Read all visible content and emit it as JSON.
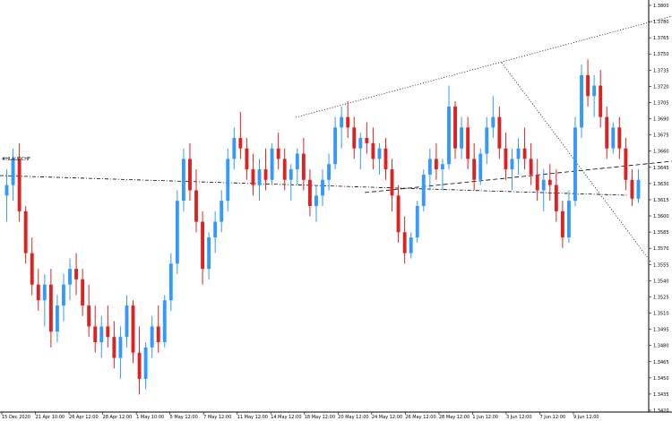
{
  "chart_data": {
    "type": "candlestick",
    "title": "",
    "xlabel": "",
    "ylabel": "",
    "ylim": [
      1.341,
      1.38
    ],
    "up_color": "#3399ff",
    "down_color": "#dd2222",
    "axis_color": "#000000",
    "trendline_color": "#000000",
    "x_ticks": [
      "15 Dec 2020",
      "21 Apr 10:00",
      "26 Apr 12:00",
      "28 Apr 12:00",
      "1 May 10:00",
      "5 May 12:00",
      "7 May 12:00",
      "11 May 12:00",
      "14 May 12:00",
      "18 May 12:00",
      "20 May 12:00",
      "24 May 12:00",
      "26 May 12:00",
      "28 May 12:00",
      "1 Jun 12:00",
      "3 Jun 12:00",
      "7 Jun 12:00",
      "9 Jun 12:00"
    ],
    "y_ticks": [
      "1.3800",
      "1.3780",
      "1.3765",
      "1.3750",
      "1.3735",
      "1.3720",
      "1.3705",
      "1.3690",
      "1.3675",
      "1.3660",
      "1.3645",
      "1.3630",
      "1.3615",
      "1.3600",
      "1.3585",
      "1.3570",
      "1.3555",
      "1.3540",
      "1.3525",
      "1.3510",
      "1.3495",
      "1.3480",
      "1.3465",
      "1.3450",
      "1.3435",
      "1.3420"
    ],
    "annotation": "#HLAUDCHF",
    "candles": [
      {
        "o": 1.3615,
        "h": 1.364,
        "l": 1.359,
        "c": 1.3625
      },
      {
        "o": 1.3625,
        "h": 1.366,
        "l": 1.361,
        "c": 1.365
      },
      {
        "o": 1.365,
        "h": 1.3665,
        "l": 1.359,
        "c": 1.36
      },
      {
        "o": 1.36,
        "h": 1.3605,
        "l": 1.355,
        "c": 1.356
      },
      {
        "o": 1.356,
        "h": 1.3575,
        "l": 1.352,
        "c": 1.353
      },
      {
        "o": 1.353,
        "h": 1.3545,
        "l": 1.3505,
        "c": 1.3515
      },
      {
        "o": 1.3515,
        "h": 1.354,
        "l": 1.349,
        "c": 1.353
      },
      {
        "o": 1.353,
        "h": 1.3545,
        "l": 1.347,
        "c": 1.3485
      },
      {
        "o": 1.3485,
        "h": 1.352,
        "l": 1.3475,
        "c": 1.351
      },
      {
        "o": 1.351,
        "h": 1.354,
        "l": 1.3495,
        "c": 1.353
      },
      {
        "o": 1.353,
        "h": 1.3555,
        "l": 1.3515,
        "c": 1.3545
      },
      {
        "o": 1.3545,
        "h": 1.356,
        "l": 1.352,
        "c": 1.3535
      },
      {
        "o": 1.3535,
        "h": 1.3545,
        "l": 1.35,
        "c": 1.351
      },
      {
        "o": 1.351,
        "h": 1.353,
        "l": 1.348,
        "c": 1.349
      },
      {
        "o": 1.349,
        "h": 1.351,
        "l": 1.3465,
        "c": 1.3475
      },
      {
        "o": 1.3475,
        "h": 1.35,
        "l": 1.346,
        "c": 1.349
      },
      {
        "o": 1.349,
        "h": 1.351,
        "l": 1.347,
        "c": 1.348
      },
      {
        "o": 1.348,
        "h": 1.3495,
        "l": 1.345,
        "c": 1.346
      },
      {
        "o": 1.346,
        "h": 1.349,
        "l": 1.344,
        "c": 1.348
      },
      {
        "o": 1.348,
        "h": 1.352,
        "l": 1.347,
        "c": 1.351
      },
      {
        "o": 1.351,
        "h": 1.3515,
        "l": 1.3455,
        "c": 1.3465
      },
      {
        "o": 1.3465,
        "h": 1.349,
        "l": 1.3425,
        "c": 1.344
      },
      {
        "o": 1.344,
        "h": 1.3475,
        "l": 1.343,
        "c": 1.347
      },
      {
        "o": 1.347,
        "h": 1.35,
        "l": 1.346,
        "c": 1.349
      },
      {
        "o": 1.349,
        "h": 1.351,
        "l": 1.3465,
        "c": 1.3475
      },
      {
        "o": 1.3475,
        "h": 1.352,
        "l": 1.347,
        "c": 1.3515
      },
      {
        "o": 1.3515,
        "h": 1.356,
        "l": 1.3505,
        "c": 1.355
      },
      {
        "o": 1.355,
        "h": 1.362,
        "l": 1.354,
        "c": 1.361
      },
      {
        "o": 1.361,
        "h": 1.366,
        "l": 1.36,
        "c": 1.365
      },
      {
        "o": 1.365,
        "h": 1.3665,
        "l": 1.361,
        "c": 1.362
      },
      {
        "o": 1.362,
        "h": 1.364,
        "l": 1.358,
        "c": 1.359
      },
      {
        "o": 1.359,
        "h": 1.36,
        "l": 1.353,
        "c": 1.3545
      },
      {
        "o": 1.3545,
        "h": 1.358,
        "l": 1.3535,
        "c": 1.3575
      },
      {
        "o": 1.3575,
        "h": 1.36,
        "l": 1.356,
        "c": 1.359
      },
      {
        "o": 1.359,
        "h": 1.362,
        "l": 1.358,
        "c": 1.361
      },
      {
        "o": 1.361,
        "h": 1.366,
        "l": 1.36,
        "c": 1.365
      },
      {
        "o": 1.365,
        "h": 1.368,
        "l": 1.364,
        "c": 1.367
      },
      {
        "o": 1.367,
        "h": 1.3695,
        "l": 1.365,
        "c": 1.366
      },
      {
        "o": 1.366,
        "h": 1.367,
        "l": 1.363,
        "c": 1.364
      },
      {
        "o": 1.364,
        "h": 1.3655,
        "l": 1.3615,
        "c": 1.3625
      },
      {
        "o": 1.3625,
        "h": 1.365,
        "l": 1.361,
        "c": 1.364
      },
      {
        "o": 1.364,
        "h": 1.366,
        "l": 1.362,
        "c": 1.363
      },
      {
        "o": 1.363,
        "h": 1.3665,
        "l": 1.3625,
        "c": 1.366
      },
      {
        "o": 1.366,
        "h": 1.3675,
        "l": 1.364,
        "c": 1.365
      },
      {
        "o": 1.365,
        "h": 1.366,
        "l": 1.362,
        "c": 1.363
      },
      {
        "o": 1.363,
        "h": 1.3645,
        "l": 1.361,
        "c": 1.364
      },
      {
        "o": 1.364,
        "h": 1.366,
        "l": 1.3625,
        "c": 1.3655
      },
      {
        "o": 1.3655,
        "h": 1.367,
        "l": 1.362,
        "c": 1.363
      },
      {
        "o": 1.363,
        "h": 1.364,
        "l": 1.3595,
        "c": 1.3605
      },
      {
        "o": 1.3605,
        "h": 1.3625,
        "l": 1.359,
        "c": 1.3615
      },
      {
        "o": 1.3615,
        "h": 1.364,
        "l": 1.3605,
        "c": 1.363
      },
      {
        "o": 1.363,
        "h": 1.3655,
        "l": 1.362,
        "c": 1.3645
      },
      {
        "o": 1.3645,
        "h": 1.369,
        "l": 1.364,
        "c": 1.368
      },
      {
        "o": 1.368,
        "h": 1.37,
        "l": 1.366,
        "c": 1.369
      },
      {
        "o": 1.369,
        "h": 1.3705,
        "l": 1.367,
        "c": 1.368
      },
      {
        "o": 1.368,
        "h": 1.369,
        "l": 1.365,
        "c": 1.366
      },
      {
        "o": 1.366,
        "h": 1.3675,
        "l": 1.364,
        "c": 1.367
      },
      {
        "o": 1.367,
        "h": 1.3685,
        "l": 1.3655,
        "c": 1.3665
      },
      {
        "o": 1.3665,
        "h": 1.368,
        "l": 1.364,
        "c": 1.365
      },
      {
        "o": 1.365,
        "h": 1.3665,
        "l": 1.3635,
        "c": 1.366
      },
      {
        "o": 1.366,
        "h": 1.367,
        "l": 1.363,
        "c": 1.364
      },
      {
        "o": 1.364,
        "h": 1.365,
        "l": 1.36,
        "c": 1.3615
      },
      {
        "o": 1.3615,
        "h": 1.3625,
        "l": 1.357,
        "c": 1.358
      },
      {
        "o": 1.358,
        "h": 1.3595,
        "l": 1.355,
        "c": 1.356
      },
      {
        "o": 1.356,
        "h": 1.358,
        "l": 1.3555,
        "c": 1.3575
      },
      {
        "o": 1.3575,
        "h": 1.361,
        "l": 1.357,
        "c": 1.3605
      },
      {
        "o": 1.3605,
        "h": 1.364,
        "l": 1.36,
        "c": 1.3635
      },
      {
        "o": 1.3635,
        "h": 1.366,
        "l": 1.362,
        "c": 1.365
      },
      {
        "o": 1.365,
        "h": 1.3665,
        "l": 1.363,
        "c": 1.364
      },
      {
        "o": 1.364,
        "h": 1.365,
        "l": 1.362,
        "c": 1.3645
      },
      {
        "o": 1.3645,
        "h": 1.372,
        "l": 1.364,
        "c": 1.37
      },
      {
        "o": 1.37,
        "h": 1.3705,
        "l": 1.365,
        "c": 1.366
      },
      {
        "o": 1.366,
        "h": 1.369,
        "l": 1.365,
        "c": 1.368
      },
      {
        "o": 1.368,
        "h": 1.369,
        "l": 1.364,
        "c": 1.365
      },
      {
        "o": 1.365,
        "h": 1.3665,
        "l": 1.362,
        "c": 1.363
      },
      {
        "o": 1.363,
        "h": 1.366,
        "l": 1.3625,
        "c": 1.3655
      },
      {
        "o": 1.3655,
        "h": 1.369,
        "l": 1.3645,
        "c": 1.368
      },
      {
        "o": 1.368,
        "h": 1.371,
        "l": 1.367,
        "c": 1.369
      },
      {
        "o": 1.369,
        "h": 1.37,
        "l": 1.365,
        "c": 1.366
      },
      {
        "o": 1.366,
        "h": 1.3675,
        "l": 1.363,
        "c": 1.364
      },
      {
        "o": 1.364,
        "h": 1.366,
        "l": 1.362,
        "c": 1.365
      },
      {
        "o": 1.365,
        "h": 1.367,
        "l": 1.3635,
        "c": 1.366
      },
      {
        "o": 1.366,
        "h": 1.368,
        "l": 1.364,
        "c": 1.365
      },
      {
        "o": 1.365,
        "h": 1.3665,
        "l": 1.3625,
        "c": 1.3635
      },
      {
        "o": 1.3635,
        "h": 1.365,
        "l": 1.361,
        "c": 1.362
      },
      {
        "o": 1.362,
        "h": 1.364,
        "l": 1.36,
        "c": 1.363
      },
      {
        "o": 1.363,
        "h": 1.3645,
        "l": 1.361,
        "c": 1.3625
      },
      {
        "o": 1.3625,
        "h": 1.364,
        "l": 1.359,
        "c": 1.36
      },
      {
        "o": 1.36,
        "h": 1.361,
        "l": 1.3565,
        "c": 1.3575
      },
      {
        "o": 1.3575,
        "h": 1.362,
        "l": 1.357,
        "c": 1.361
      },
      {
        "o": 1.361,
        "h": 1.369,
        "l": 1.3605,
        "c": 1.368
      },
      {
        "o": 1.368,
        "h": 1.374,
        "l": 1.367,
        "c": 1.373
      },
      {
        "o": 1.373,
        "h": 1.3745,
        "l": 1.37,
        "c": 1.371
      },
      {
        "o": 1.371,
        "h": 1.373,
        "l": 1.369,
        "c": 1.372
      },
      {
        "o": 1.372,
        "h": 1.3735,
        "l": 1.368,
        "c": 1.369
      },
      {
        "o": 1.369,
        "h": 1.37,
        "l": 1.365,
        "c": 1.366
      },
      {
        "o": 1.366,
        "h": 1.3685,
        "l": 1.3655,
        "c": 1.368
      },
      {
        "o": 1.368,
        "h": 1.369,
        "l": 1.365,
        "c": 1.366
      },
      {
        "o": 1.366,
        "h": 1.367,
        "l": 1.362,
        "c": 1.363
      },
      {
        "o": 1.363,
        "h": 1.364,
        "l": 1.3605,
        "c": 1.3612
      },
      {
        "o": 1.3612,
        "h": 1.364,
        "l": 1.3608,
        "c": 1.363
      }
    ],
    "trendlines": [
      {
        "x1": 330,
        "y1": 131,
        "x2": 750,
        "y2": 18,
        "style": "dotted"
      },
      {
        "x1": 407,
        "y1": 215,
        "x2": 750,
        "y2": 180,
        "style": "dashed"
      },
      {
        "x1": 560,
        "y1": 70,
        "x2": 726,
        "y2": 292,
        "style": "dotted"
      },
      {
        "x1": 0,
        "y1": 196,
        "x2": 700,
        "y2": 218,
        "style": "dashdot"
      }
    ]
  }
}
